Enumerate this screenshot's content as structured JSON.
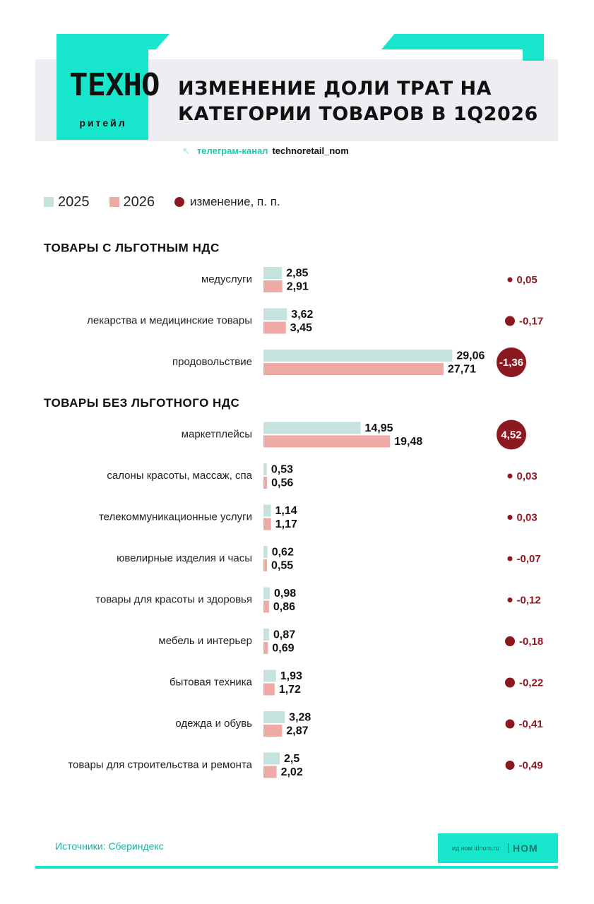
{
  "header": {
    "logo_word": "ТЕХНО",
    "logo_sub": "ритейл",
    "title": "ИЗМЕНЕНИЕ ДОЛИ ТРАТ НА КАТЕГОРИИ ТОВАРОВ В 1Q2026",
    "channel_label": "телеграм-канал",
    "channel_handle": "technoretail_nom"
  },
  "legend": {
    "series_a": "2025",
    "series_b": "2026",
    "change": "изменение, п. п."
  },
  "colors": {
    "accent_teal": "#18e6cc",
    "bar_2025": "#c5e2df",
    "bar_2026": "#eeaaa5",
    "change_dot": "#8e1820"
  },
  "chart_data": {
    "type": "bar",
    "orientation": "horizontal",
    "series": [
      {
        "name": "2025"
      },
      {
        "name": "2026"
      }
    ],
    "change_label": "изменение, п. п.",
    "groups": [
      {
        "title": "ТОВАРЫ С ЛЬГОТНЫМ НДС",
        "rows": [
          {
            "category": "медуслуги",
            "v2025": 2.85,
            "v2026": 2.91,
            "v2025_label": "2,85",
            "v2026_label": "2,91",
            "change": 0.05,
            "change_label": "0,05"
          },
          {
            "category": "лекарства и медицинские товары",
            "v2025": 3.62,
            "v2026": 3.45,
            "v2025_label": "3,62",
            "v2026_label": "3,45",
            "change": -0.17,
            "change_label": "-0,17"
          },
          {
            "category": "продовольствие",
            "v2025": 29.06,
            "v2026": 27.71,
            "v2025_label": "29,06",
            "v2026_label": "27,71",
            "change": -1.36,
            "change_label": "-1,36"
          }
        ]
      },
      {
        "title": "ТОВАРЫ БЕЗ ЛЬГОТНОГО НДС",
        "rows": [
          {
            "category": "маркетплейсы",
            "v2025": 14.95,
            "v2026": 19.48,
            "v2025_label": "14,95",
            "v2026_label": "19,48",
            "change": 4.52,
            "change_label": "4,52"
          },
          {
            "category": "салоны красоты, массаж, спа",
            "v2025": 0.53,
            "v2026": 0.56,
            "v2025_label": "0,53",
            "v2026_label": "0,56",
            "change": 0.03,
            "change_label": "0,03"
          },
          {
            "category": "телекоммуникационные услуги",
            "v2025": 1.14,
            "v2026": 1.17,
            "v2025_label": "1,14",
            "v2026_label": "1,17",
            "change": 0.03,
            "change_label": "0,03"
          },
          {
            "category": "ювелирные изделия и часы",
            "v2025": 0.62,
            "v2026": 0.55,
            "v2025_label": "0,62",
            "v2026_label": "0,55",
            "change": -0.07,
            "change_label": "-0,07"
          },
          {
            "category": "товары для красоты и здоровья",
            "v2025": 0.98,
            "v2026": 0.86,
            "v2025_label": "0,98",
            "v2026_label": "0,86",
            "change": -0.12,
            "change_label": "-0,12"
          },
          {
            "category": "мебель и интерьер",
            "v2025": 0.87,
            "v2026": 0.69,
            "v2025_label": "0,87",
            "v2026_label": "0,69",
            "change": -0.18,
            "change_label": "-0,18"
          },
          {
            "category": "бытовая техника",
            "v2025": 1.93,
            "v2026": 1.72,
            "v2025_label": "1,93",
            "v2026_label": "1,72",
            "change": -0.22,
            "change_label": "-0,22"
          },
          {
            "category": "одежда и обувь",
            "v2025": 3.28,
            "v2026": 2.87,
            "v2025_label": "3,28",
            "v2026_label": "2,87",
            "change": -0.41,
            "change_label": "-0,41"
          },
          {
            "category": "товары для строительства и ремонта",
            "v2025": 2.5,
            "v2026": 2.02,
            "v2025_label": "2,5",
            "v2026_label": "2,02",
            "change": -0.49,
            "change_label": "-0,49"
          }
        ]
      }
    ]
  },
  "footer": {
    "source": "Источники: Сбериндекс",
    "site": "ид ном idnom.ru",
    "brand": "НОМ"
  }
}
